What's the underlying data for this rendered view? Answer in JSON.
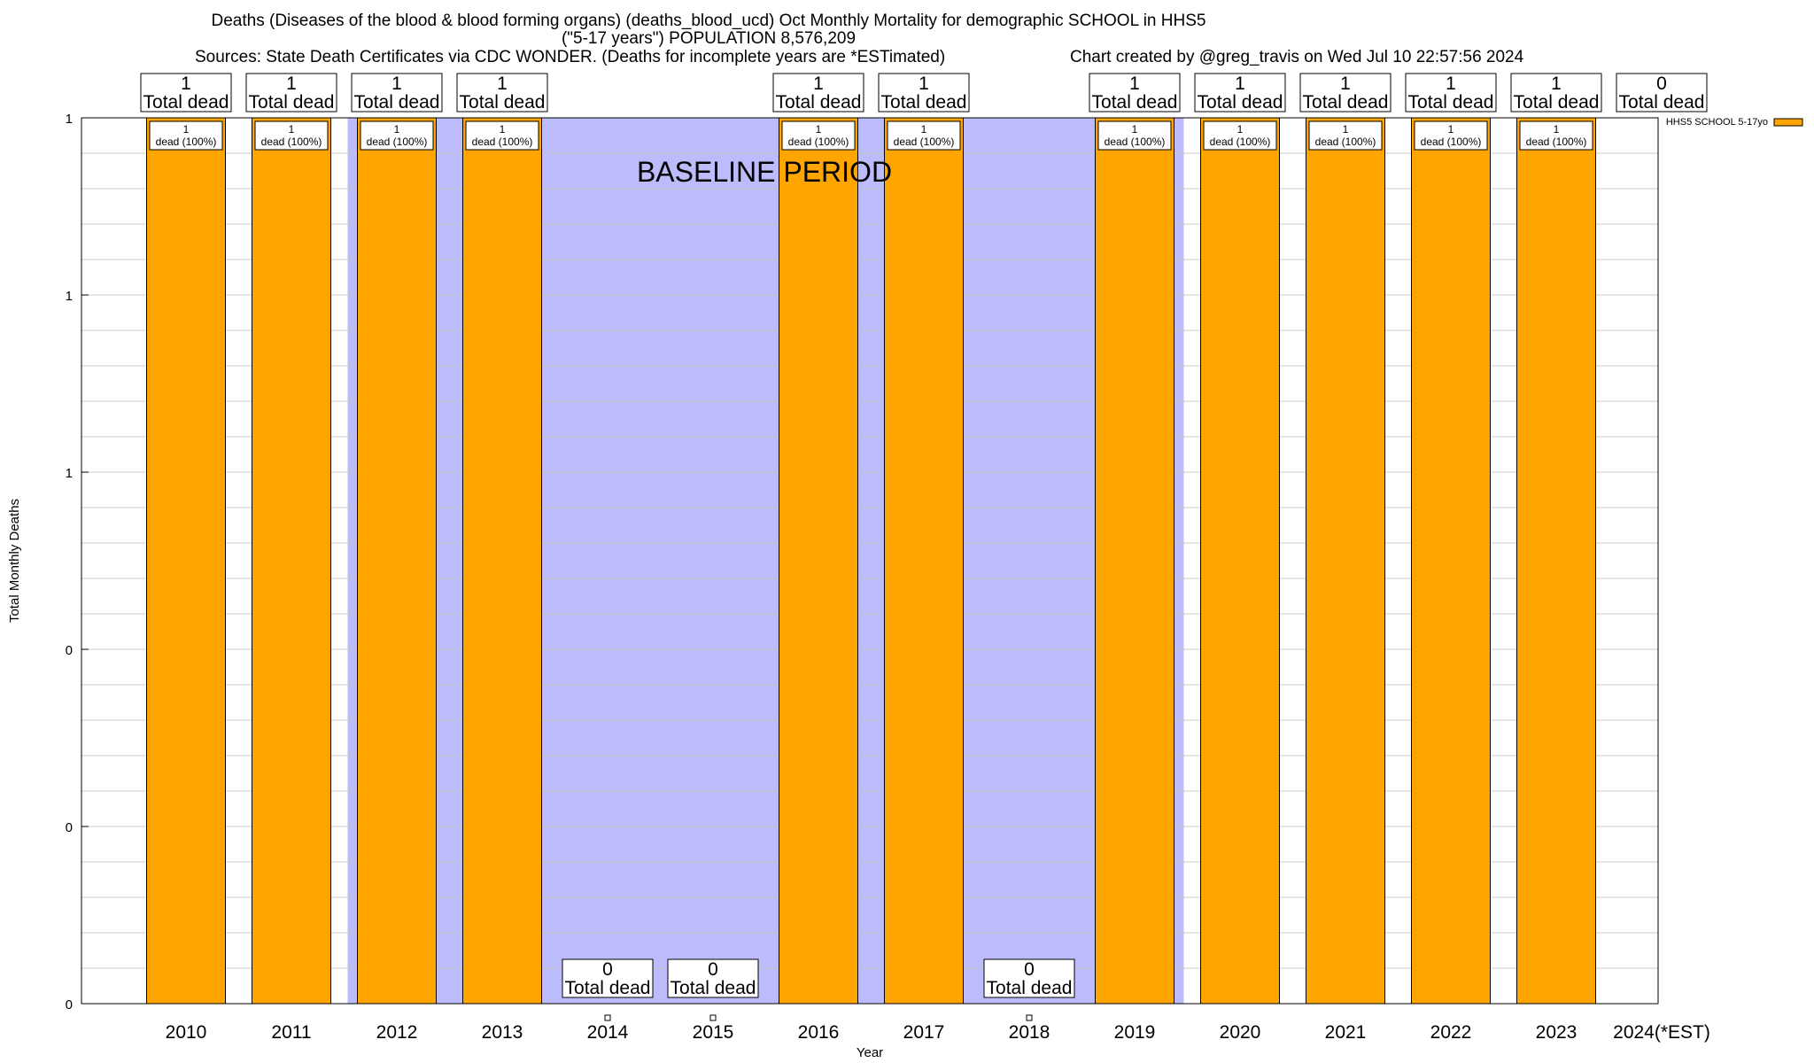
{
  "title": {
    "line1": "Deaths (Diseases of the blood & blood forming organs) (deaths_blood_ucd) Oct Monthly Mortality for demographic SCHOOL in HHS5",
    "line2": "(\"5-17 years\") POPULATION 8,576,209",
    "sources": "Sources: State Death Certificates via CDC WONDER. (Deaths for incomplete years are *ESTimated)",
    "credit": "Chart created by @greg_travis on Wed Jul 10 22:57:56 2024"
  },
  "chart_data": {
    "type": "bar",
    "title": "Deaths (Diseases of the blood & blood forming organs) (deaths_blood_ucd) Oct Monthly Mortality for demographic SCHOOL in HHS5",
    "xlabel": "Year",
    "ylabel": "Total Monthly Deaths",
    "categories": [
      "2010",
      "2011",
      "2012",
      "2013",
      "2014",
      "2015",
      "2016",
      "2017",
      "2018",
      "2019",
      "2020",
      "2021",
      "2022",
      "2023",
      "2024(*EST)"
    ],
    "series": [
      {
        "name": "HHS5 SCHOOL 5-17yo",
        "color": "#ffa500",
        "values": [
          1,
          1,
          1,
          1,
          0,
          0,
          1,
          1,
          0,
          1,
          1,
          1,
          1,
          1,
          0
        ]
      }
    ],
    "ylim": [
      0,
      1
    ],
    "ytick_values": [
      0,
      0.2,
      0.4,
      0.6,
      0.8,
      1
    ],
    "ytick_labels": [
      "0",
      "0",
      "0",
      "1",
      "1",
      "1"
    ],
    "total_labels": [
      "1",
      "1",
      "1",
      "1",
      "0",
      "0",
      "1",
      "1",
      "0",
      "1",
      "1",
      "1",
      "1",
      "1",
      "0"
    ],
    "total_suffix": "Total dead",
    "bar_labels": [
      "1",
      "1",
      "1",
      "1",
      "",
      "",
      "1",
      "1",
      "",
      "1",
      "1",
      "1",
      "1",
      "1",
      ""
    ],
    "bar_label_suffix": "dead (100%)",
    "baseline_label": "BASELINE PERIOD",
    "baseline_range": [
      "2012",
      "2019"
    ],
    "baseline_color": "#bcbcfc",
    "grid": true,
    "legend_position": "top-right"
  }
}
